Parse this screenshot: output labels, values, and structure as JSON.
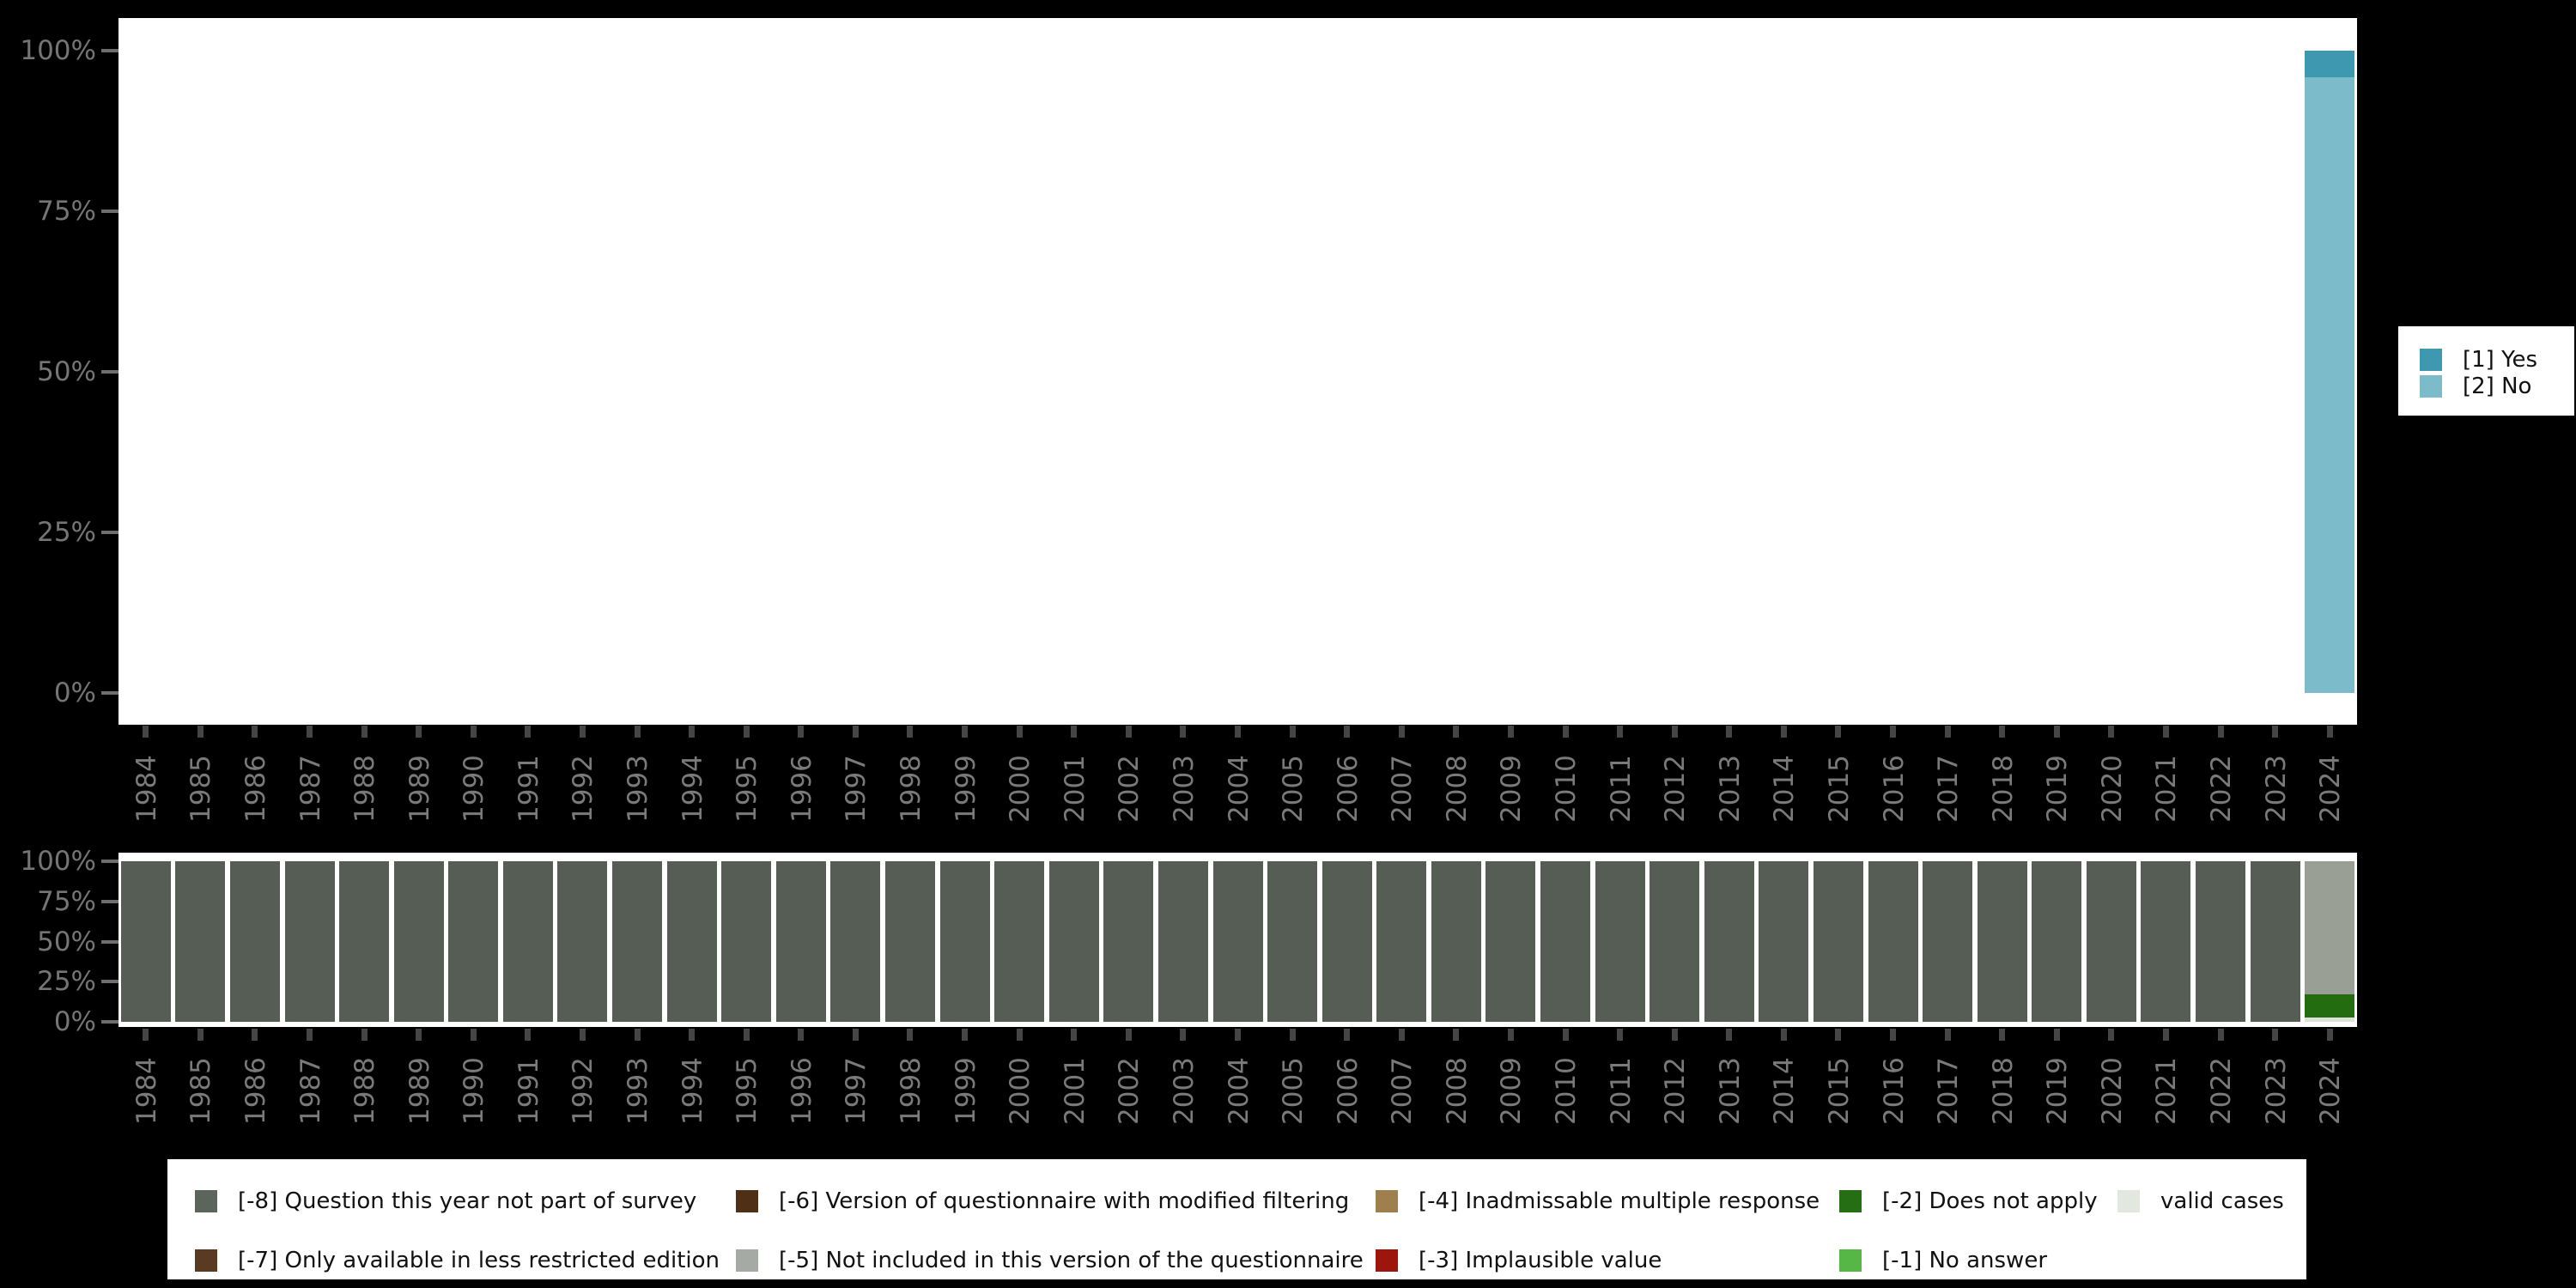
{
  "background_color": "#000000",
  "years": [
    "1984",
    "1985",
    "1986",
    "1987",
    "1988",
    "1989",
    "1990",
    "1991",
    "1992",
    "1993",
    "1994",
    "1995",
    "1996",
    "1997",
    "1998",
    "1999",
    "2000",
    "2001",
    "2002",
    "2003",
    "2004",
    "2005",
    "2006",
    "2007",
    "2008",
    "2009",
    "2010",
    "2011",
    "2012",
    "2013",
    "2014",
    "2015",
    "2016",
    "2017",
    "2018",
    "2019",
    "2020",
    "2021",
    "2022",
    "2023",
    "2024"
  ],
  "chart_data": [
    {
      "type": "bar",
      "stacked": true,
      "title": "",
      "xlabel": "",
      "ylabel": "",
      "ylim": [
        0,
        100
      ],
      "ytick_labels": [
        "100%",
        "75%",
        "50%",
        "25%",
        "0%"
      ],
      "grid": false,
      "legend_position": "right",
      "categories": [
        "1984",
        "1985",
        "1986",
        "1987",
        "1988",
        "1989",
        "1990",
        "1991",
        "1992",
        "1993",
        "1994",
        "1995",
        "1996",
        "1997",
        "1998",
        "1999",
        "2000",
        "2001",
        "2002",
        "2003",
        "2004",
        "2005",
        "2006",
        "2007",
        "2008",
        "2009",
        "2010",
        "2011",
        "2012",
        "2013",
        "2014",
        "2015",
        "2016",
        "2017",
        "2018",
        "2019",
        "2020",
        "2021",
        "2022",
        "2023",
        "2024"
      ],
      "series": [
        {
          "name": "[1] Yes",
          "color": "#3e99b0",
          "values": [
            null,
            null,
            null,
            null,
            null,
            null,
            null,
            null,
            null,
            null,
            null,
            null,
            null,
            null,
            null,
            null,
            null,
            null,
            null,
            null,
            null,
            null,
            null,
            null,
            null,
            null,
            null,
            null,
            null,
            null,
            null,
            null,
            null,
            null,
            null,
            null,
            null,
            null,
            null,
            null,
            4.1
          ]
        },
        {
          "name": "[2] No",
          "color": "#7cbbca",
          "values": [
            null,
            null,
            null,
            null,
            null,
            null,
            null,
            null,
            null,
            null,
            null,
            null,
            null,
            null,
            null,
            null,
            null,
            null,
            null,
            null,
            null,
            null,
            null,
            null,
            null,
            null,
            null,
            null,
            null,
            null,
            null,
            null,
            null,
            null,
            null,
            null,
            null,
            null,
            null,
            null,
            95.9
          ]
        }
      ]
    },
    {
      "type": "bar",
      "stacked": true,
      "title": "",
      "xlabel": "",
      "ylabel": "",
      "ylim": [
        0,
        100
      ],
      "ytick_labels": [
        "100%",
        "75%",
        "50%",
        "25%",
        "0%"
      ],
      "grid": false,
      "legend_position": "bottom",
      "categories": [
        "1984",
        "1985",
        "1986",
        "1987",
        "1988",
        "1989",
        "1990",
        "1991",
        "1992",
        "1993",
        "1994",
        "1995",
        "1996",
        "1997",
        "1998",
        "1999",
        "2000",
        "2001",
        "2002",
        "2003",
        "2004",
        "2005",
        "2006",
        "2007",
        "2008",
        "2009",
        "2010",
        "2011",
        "2012",
        "2013",
        "2014",
        "2015",
        "2016",
        "2017",
        "2018",
        "2019",
        "2020",
        "2021",
        "2022",
        "2023",
        "2024"
      ],
      "series": [
        {
          "name": "[-8] Question this year not part of survey",
          "color": "#565d55",
          "values": [
            100,
            100,
            100,
            100,
            100,
            100,
            100,
            100,
            100,
            100,
            100,
            100,
            100,
            100,
            100,
            100,
            100,
            100,
            100,
            100,
            100,
            100,
            100,
            100,
            100,
            100,
            100,
            100,
            100,
            100,
            100,
            100,
            100,
            100,
            100,
            100,
            100,
            100,
            100,
            100,
            null
          ]
        },
        {
          "name": "[-5] Not included in this version of the questionnaire",
          "color": "#9a9f96",
          "values": [
            null,
            null,
            null,
            null,
            null,
            null,
            null,
            null,
            null,
            null,
            null,
            null,
            null,
            null,
            null,
            null,
            null,
            null,
            null,
            null,
            null,
            null,
            null,
            null,
            null,
            null,
            null,
            null,
            null,
            null,
            null,
            null,
            null,
            null,
            null,
            null,
            null,
            null,
            null,
            null,
            83
          ]
        },
        {
          "name": "[-2] Does not apply",
          "color": "#246c10",
          "values": [
            null,
            null,
            null,
            null,
            null,
            null,
            null,
            null,
            null,
            null,
            null,
            null,
            null,
            null,
            null,
            null,
            null,
            null,
            null,
            null,
            null,
            null,
            null,
            null,
            null,
            null,
            null,
            null,
            null,
            null,
            null,
            null,
            null,
            null,
            null,
            null,
            null,
            null,
            null,
            null,
            14.5
          ]
        },
        {
          "name": "valid cases",
          "color": "#dde3d9",
          "values": [
            null,
            null,
            null,
            null,
            null,
            null,
            null,
            null,
            null,
            null,
            null,
            null,
            null,
            null,
            null,
            null,
            null,
            null,
            null,
            null,
            null,
            null,
            null,
            null,
            null,
            null,
            null,
            null,
            null,
            null,
            null,
            null,
            null,
            null,
            null,
            null,
            null,
            null,
            null,
            null,
            2.5
          ]
        }
      ]
    }
  ],
  "legend_right": {
    "items": [
      {
        "label": "[1] Yes",
        "color": "#3e99b0"
      },
      {
        "label": "[2] No",
        "color": "#7cbbca"
      }
    ]
  },
  "legend_bottom": {
    "rows": [
      [
        {
          "label": "[-8] Question this year not part of survey",
          "color": "#5c655b"
        },
        {
          "label": "[-6] Version of questionnaire with modified filtering",
          "color": "#4f3016"
        },
        {
          "label": "[-4] Inadmissable multiple response",
          "color": "#a07f4f"
        },
        {
          "label": "[-2] Does not apply",
          "color": "#266e13"
        },
        {
          "label": "valid cases",
          "color": "#e2e7e0"
        }
      ],
      [
        {
          "label": "[-7] Only available in less restricted edition",
          "color": "#5a3a20"
        },
        {
          "label": "[-5] Not included in this version of the questionnaire",
          "color": "#a5aaa5"
        },
        {
          "label": "[-3] Implausible value",
          "color": "#9d150d"
        },
        {
          "label": "[-1] No answer",
          "color": "#56b747"
        }
      ]
    ]
  }
}
